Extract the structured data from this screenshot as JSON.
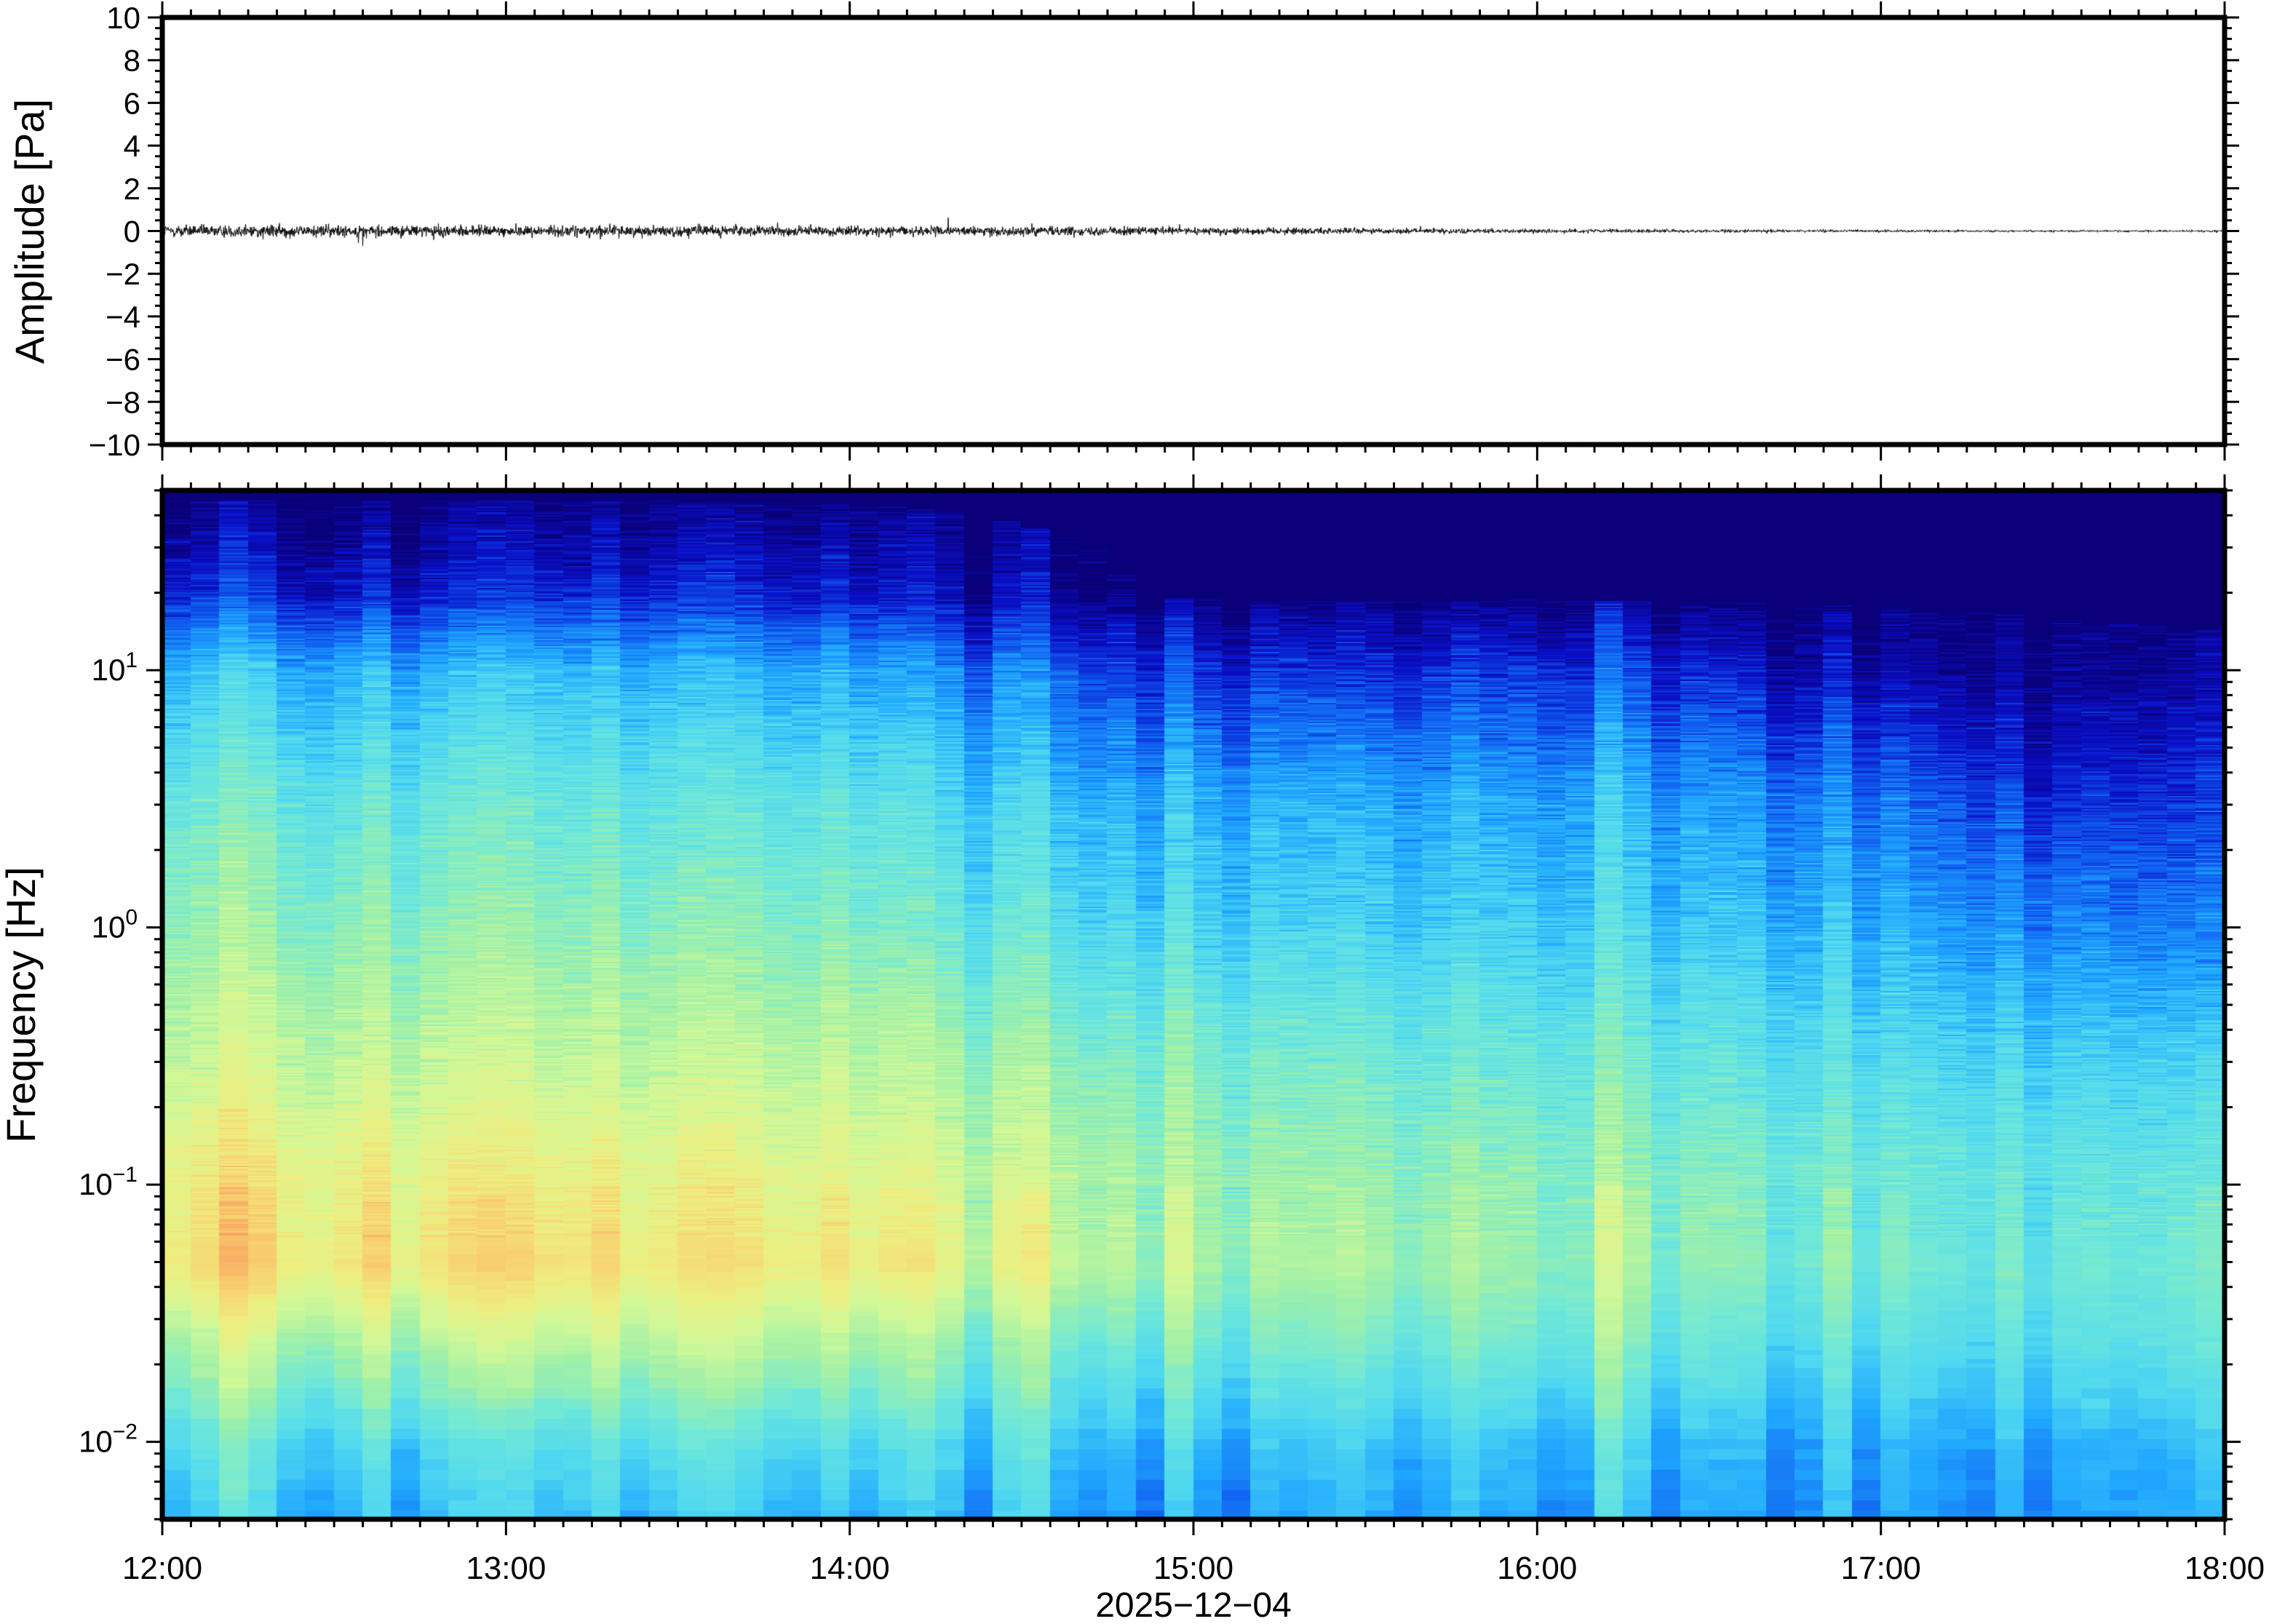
{
  "chart_data": [
    {
      "type": "line",
      "panel": "waveform",
      "ylabel": "Amplitude [Pa]",
      "ylim": [
        -10,
        10
      ],
      "yticks": [
        "10",
        "8",
        "6",
        "4",
        "2",
        "0",
        "−2",
        "−4",
        "−6",
        "−8",
        "−10"
      ],
      "ytick_values": [
        10,
        8,
        6,
        4,
        2,
        0,
        -2,
        -4,
        -6,
        -8,
        -10
      ],
      "x_hours": [
        12,
        13,
        14,
        15,
        16,
        17,
        18
      ],
      "envelope_pa": [
        0.25,
        0.22,
        0.2,
        0.15,
        0.08,
        0.05,
        0.04
      ],
      "xlim_hours": [
        12,
        18
      ]
    },
    {
      "type": "heatmap",
      "panel": "spectrogram",
      "ylabel": "Frequency [Hz]",
      "yscale": "log",
      "ylim": [
        0.005,
        50
      ],
      "yticks": [
        {
          "base": "10",
          "exp": "1",
          "value": 10
        },
        {
          "base": "10",
          "exp": "0",
          "value": 1
        },
        {
          "base": "10",
          "exp": "−1",
          "value": 0.1
        },
        {
          "base": "10",
          "exp": "−2",
          "value": 0.01
        }
      ],
      "xlabel": "2025−12−04",
      "xticks": [
        "12:00",
        "13:00",
        "14:00",
        "15:00",
        "16:00",
        "17:00",
        "18:00"
      ],
      "xlim_hours": [
        12,
        18
      ],
      "grid_time_hours": [
        12,
        12.5,
        13,
        13.5,
        14,
        14.5,
        15,
        15.5,
        16,
        16.5,
        17,
        17.5,
        18
      ],
      "grid_log10_freq": [
        1.7,
        1.3,
        1.0,
        0.5,
        0.0,
        -0.5,
        -1.0,
        -1.3,
        -1.6,
        -2.0,
        -2.3
      ],
      "relative_power": [
        [
          0,
          0,
          0,
          0,
          0,
          0,
          0,
          0,
          0,
          0,
          0,
          0,
          0
        ],
        [
          0.12,
          0.1,
          0.1,
          0.1,
          0.08,
          0.03,
          0,
          0,
          0,
          0,
          0,
          0,
          0
        ],
        [
          0.3,
          0.28,
          0.28,
          0.27,
          0.25,
          0.18,
          0.12,
          0.1,
          0.12,
          0.1,
          0.06,
          0.03,
          0.02
        ],
        [
          0.42,
          0.4,
          0.4,
          0.38,
          0.37,
          0.3,
          0.26,
          0.25,
          0.25,
          0.24,
          0.2,
          0.12,
          0.1
        ],
        [
          0.5,
          0.48,
          0.47,
          0.46,
          0.45,
          0.37,
          0.33,
          0.31,
          0.31,
          0.3,
          0.28,
          0.22,
          0.18
        ],
        [
          0.58,
          0.57,
          0.56,
          0.55,
          0.54,
          0.48,
          0.44,
          0.41,
          0.4,
          0.39,
          0.36,
          0.33,
          0.3
        ],
        [
          0.68,
          0.68,
          0.66,
          0.64,
          0.63,
          0.56,
          0.5,
          0.48,
          0.47,
          0.46,
          0.43,
          0.4,
          0.38
        ],
        [
          0.72,
          0.72,
          0.71,
          0.68,
          0.67,
          0.6,
          0.52,
          0.5,
          0.48,
          0.47,
          0.45,
          0.42,
          0.4
        ],
        [
          0.55,
          0.55,
          0.55,
          0.55,
          0.52,
          0.45,
          0.42,
          0.42,
          0.42,
          0.4,
          0.38,
          0.38,
          0.36
        ],
        [
          0.38,
          0.36,
          0.34,
          0.36,
          0.33,
          0.32,
          0.28,
          0.28,
          0.28,
          0.28,
          0.28,
          0.27,
          0.26
        ],
        [
          0.3,
          0.3,
          0.28,
          0.28,
          0.26,
          0.26,
          0.22,
          0.24,
          0.24,
          0.24,
          0.25,
          0.24,
          0.24
        ]
      ],
      "colormap": [
        "#0a0078",
        "#0a10c8",
        "#1060f0",
        "#20a8ff",
        "#50d8f0",
        "#70e8d8",
        "#a0f0a8",
        "#d0f898",
        "#eeee80",
        "#f8d070",
        "#f8a060",
        "#f06040",
        "#c02020"
      ]
    }
  ]
}
